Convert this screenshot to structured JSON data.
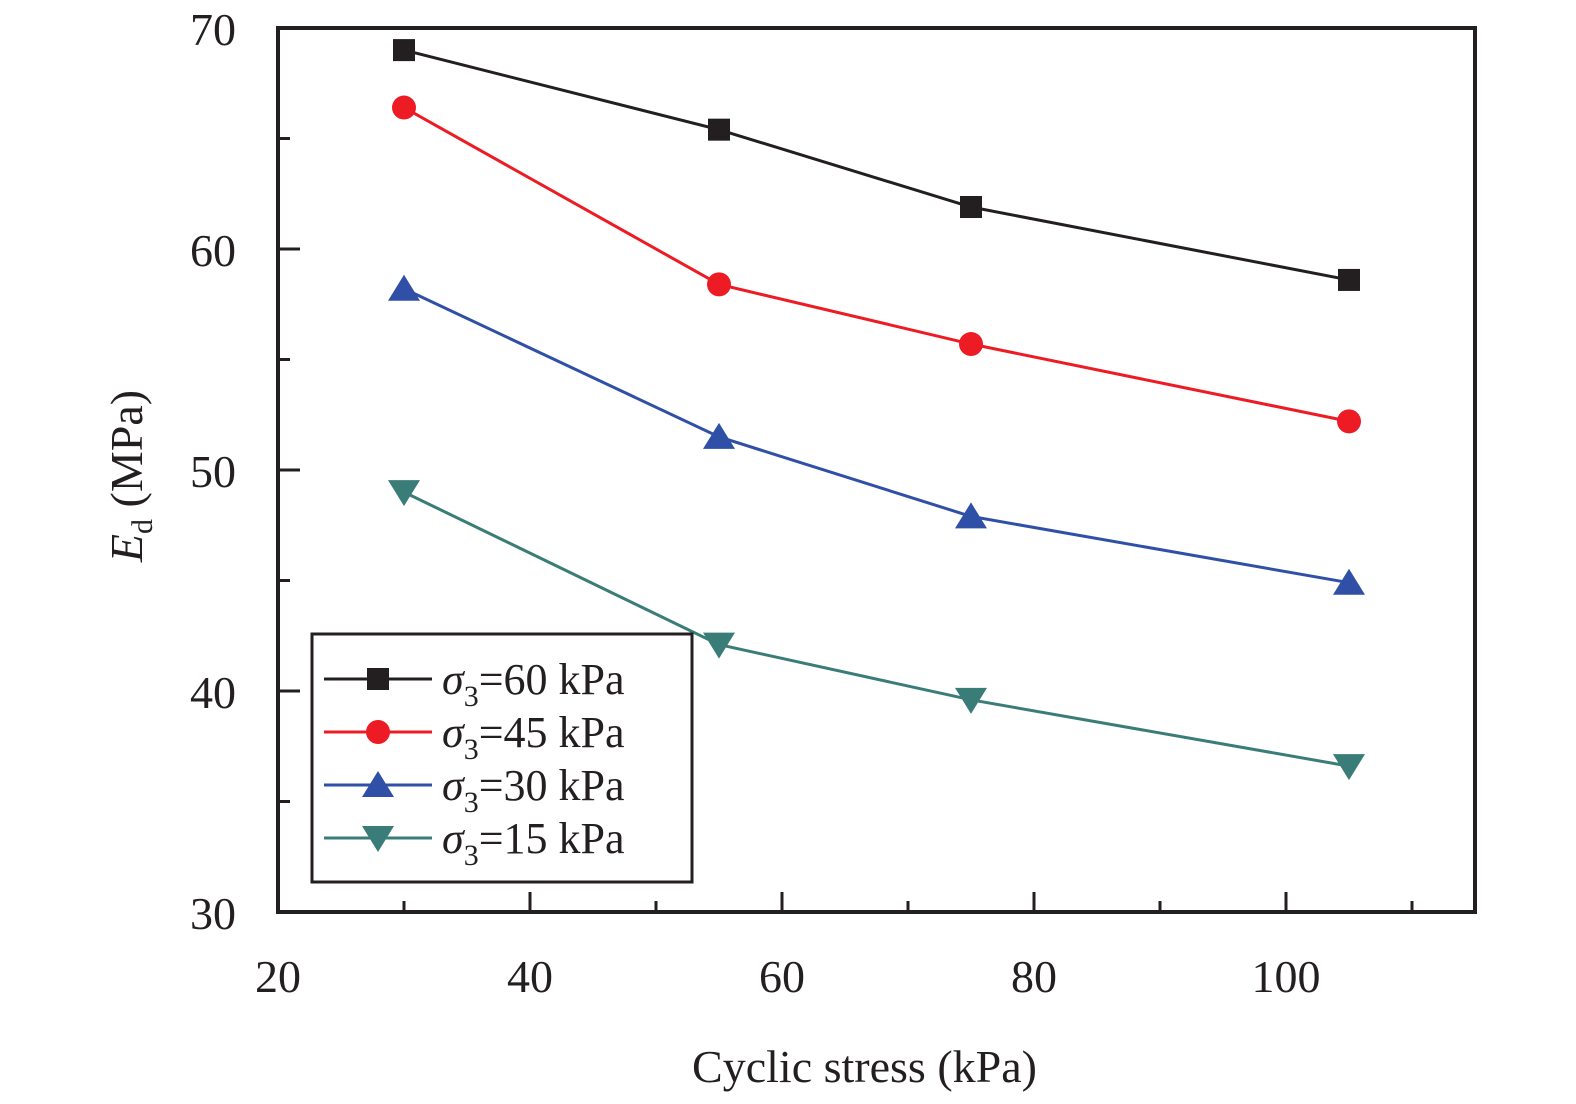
{
  "chart_data": {
    "type": "line",
    "title": "",
    "xlabel": "Cyclic stress (kPa)",
    "ylabel": {
      "main": "E",
      "subscript": "d",
      "unit": " (MPa)"
    },
    "xlim": [
      20,
      115
    ],
    "ylim": [
      30,
      70
    ],
    "x_ticks": [
      20,
      40,
      60,
      80,
      100
    ],
    "x_minor_ticks": [
      30,
      50,
      70,
      90,
      110
    ],
    "y_ticks": [
      30,
      40,
      50,
      60,
      70
    ],
    "y_minor_ticks": [
      35,
      45,
      55,
      65
    ],
    "grid": false,
    "legend_position": "bottom-left",
    "x": [
      30,
      55,
      75,
      105
    ],
    "series": [
      {
        "name": "σ3=60 kPa",
        "label_symbol": "σ",
        "label_sub": "3",
        "label_rest": "=60 kPa",
        "color": "#231f20",
        "marker": "square",
        "values": [
          69.0,
          65.4,
          61.9,
          58.6
        ]
      },
      {
        "name": "σ3=45 kPa",
        "label_symbol": "σ",
        "label_sub": "3",
        "label_rest": "=45 kPa",
        "color": "#ed1c24",
        "marker": "circle",
        "values": [
          66.4,
          58.4,
          55.7,
          52.2
        ]
      },
      {
        "name": "σ3=30 kPa",
        "label_symbol": "σ",
        "label_sub": "3",
        "label_rest": "=30 kPa",
        "color": "#3050a8",
        "marker": "triangle-up",
        "values": [
          58.2,
          51.5,
          47.9,
          44.9
        ]
      },
      {
        "name": "σ3=15 kPa",
        "label_symbol": "σ",
        "label_sub": "3",
        "label_rest": "=15 kPa",
        "color": "#3a7d78",
        "marker": "triangle-down",
        "values": [
          49.0,
          42.1,
          39.6,
          36.6
        ]
      }
    ]
  }
}
